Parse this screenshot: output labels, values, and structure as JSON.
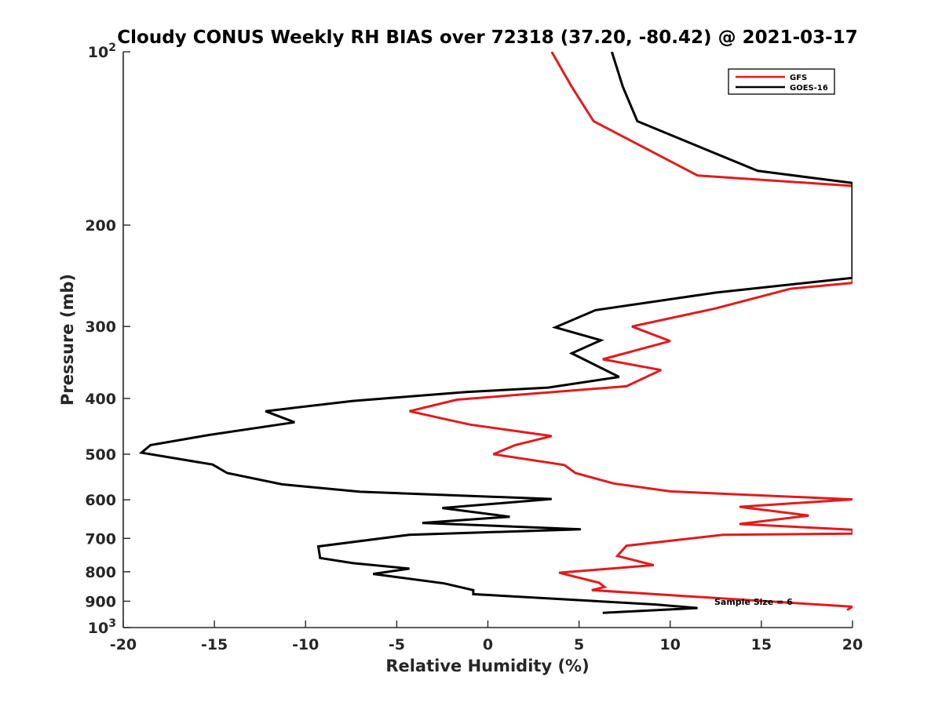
{
  "chart_data": {
    "type": "line",
    "title": "Cloudy CONUS Weekly RH BIAS over 72318 (37.20, -80.42) @ 2021-03-17",
    "xlabel": "Relative Humidity (%)",
    "ylabel": "Pressure (mb)",
    "xlim": [
      -20,
      20
    ],
    "ylim": [
      100,
      1000
    ],
    "yscale": "log",
    "y_reversed": true,
    "xticks": [
      -20,
      -15,
      -10,
      -5,
      0,
      5,
      10,
      15,
      20
    ],
    "xtick_labels": [
      "-20",
      "-15",
      "-10",
      "-5",
      "0",
      "5",
      "10",
      "15",
      "20"
    ],
    "yticks": [
      100,
      200,
      300,
      400,
      500,
      600,
      700,
      800,
      900,
      1000
    ],
    "ytick_labels": [
      {
        "base": "10",
        "exp": "2"
      },
      {
        "base": "200",
        "exp": ""
      },
      {
        "base": "300",
        "exp": ""
      },
      {
        "base": "400",
        "exp": ""
      },
      {
        "base": "500",
        "exp": ""
      },
      {
        "base": "600",
        "exp": ""
      },
      {
        "base": "700",
        "exp": ""
      },
      {
        "base": "800",
        "exp": ""
      },
      {
        "base": "900",
        "exp": ""
      },
      {
        "base": "10",
        "exp": "3"
      }
    ],
    "legend_position": "top-right",
    "annotation": "Sample Size = 6",
    "series": [
      {
        "name": "GFS",
        "color": "#e41a1c",
        "points": [
          [
            3.5,
            100
          ],
          [
            4.6,
            115
          ],
          [
            5.8,
            132
          ],
          [
            11.5,
            164
          ],
          [
            20,
            171
          ],
          [
            20,
            252
          ],
          [
            16.6,
            258
          ],
          [
            12.5,
            279
          ],
          [
            7.9,
            300
          ],
          [
            10.0,
            318
          ],
          [
            6.3,
            342
          ],
          [
            9.5,
            357
          ],
          [
            7.6,
            381
          ],
          [
            -1.7,
            402
          ],
          [
            -4.3,
            421
          ],
          [
            -1.0,
            444
          ],
          [
            3.5,
            465
          ],
          [
            1.5,
            482
          ],
          [
            0.3,
            500
          ],
          [
            4.2,
            522
          ],
          [
            4.8,
            539
          ],
          [
            6.9,
            562
          ],
          [
            10.0,
            580
          ],
          [
            20,
            599
          ],
          [
            13.8,
            617
          ],
          [
            17.6,
            639
          ],
          [
            13.8,
            661
          ],
          [
            20,
            676
          ],
          [
            20,
            687
          ],
          [
            12.9,
            690
          ],
          [
            7.6,
            721
          ],
          [
            7.1,
            751
          ],
          [
            9.1,
            779
          ],
          [
            3.9,
            803
          ],
          [
            6.1,
            836
          ],
          [
            6.4,
            850
          ],
          [
            5.7,
            861
          ],
          [
            20,
            920
          ],
          [
            19.7,
            932
          ]
        ]
      },
      {
        "name": "GOES-16",
        "color": "#000000",
        "points": [
          [
            6.8,
            100
          ],
          [
            7.4,
            115
          ],
          [
            8.2,
            132
          ],
          [
            14.8,
            161
          ],
          [
            20,
            169
          ],
          [
            20,
            247
          ],
          [
            12.5,
            262
          ],
          [
            5.9,
            281
          ],
          [
            3.7,
            301
          ],
          [
            6.2,
            317
          ],
          [
            4.6,
            334
          ],
          [
            7.2,
            367
          ],
          [
            3.3,
            383
          ],
          [
            -1.2,
            390
          ],
          [
            -7.4,
            404
          ],
          [
            -12.2,
            421
          ],
          [
            -10.6,
            440
          ],
          [
            -15.3,
            463
          ],
          [
            -18.5,
            482
          ],
          [
            -19.0,
            497
          ],
          [
            -15.1,
            521
          ],
          [
            -14.3,
            539
          ],
          [
            -11.3,
            564
          ],
          [
            -7.0,
            581
          ],
          [
            3.5,
            598
          ],
          [
            -2.5,
            620
          ],
          [
            1.2,
            642
          ],
          [
            -3.6,
            658
          ],
          [
            5.1,
            675
          ],
          [
            -4.3,
            690
          ],
          [
            -9.3,
            723
          ],
          [
            -9.2,
            757
          ],
          [
            -7.4,
            773
          ],
          [
            -4.3,
            790
          ],
          [
            -6.3,
            807
          ],
          [
            -2.4,
            838
          ],
          [
            -0.8,
            861
          ],
          [
            -0.8,
            875
          ],
          [
            9.2,
            912
          ],
          [
            11.5,
            925
          ],
          [
            6.3,
            943
          ]
        ]
      }
    ]
  },
  "legend": {
    "items": [
      {
        "name": "GFS",
        "color": "#e41a1c"
      },
      {
        "name": "GOES-16",
        "color": "#000000"
      }
    ]
  }
}
